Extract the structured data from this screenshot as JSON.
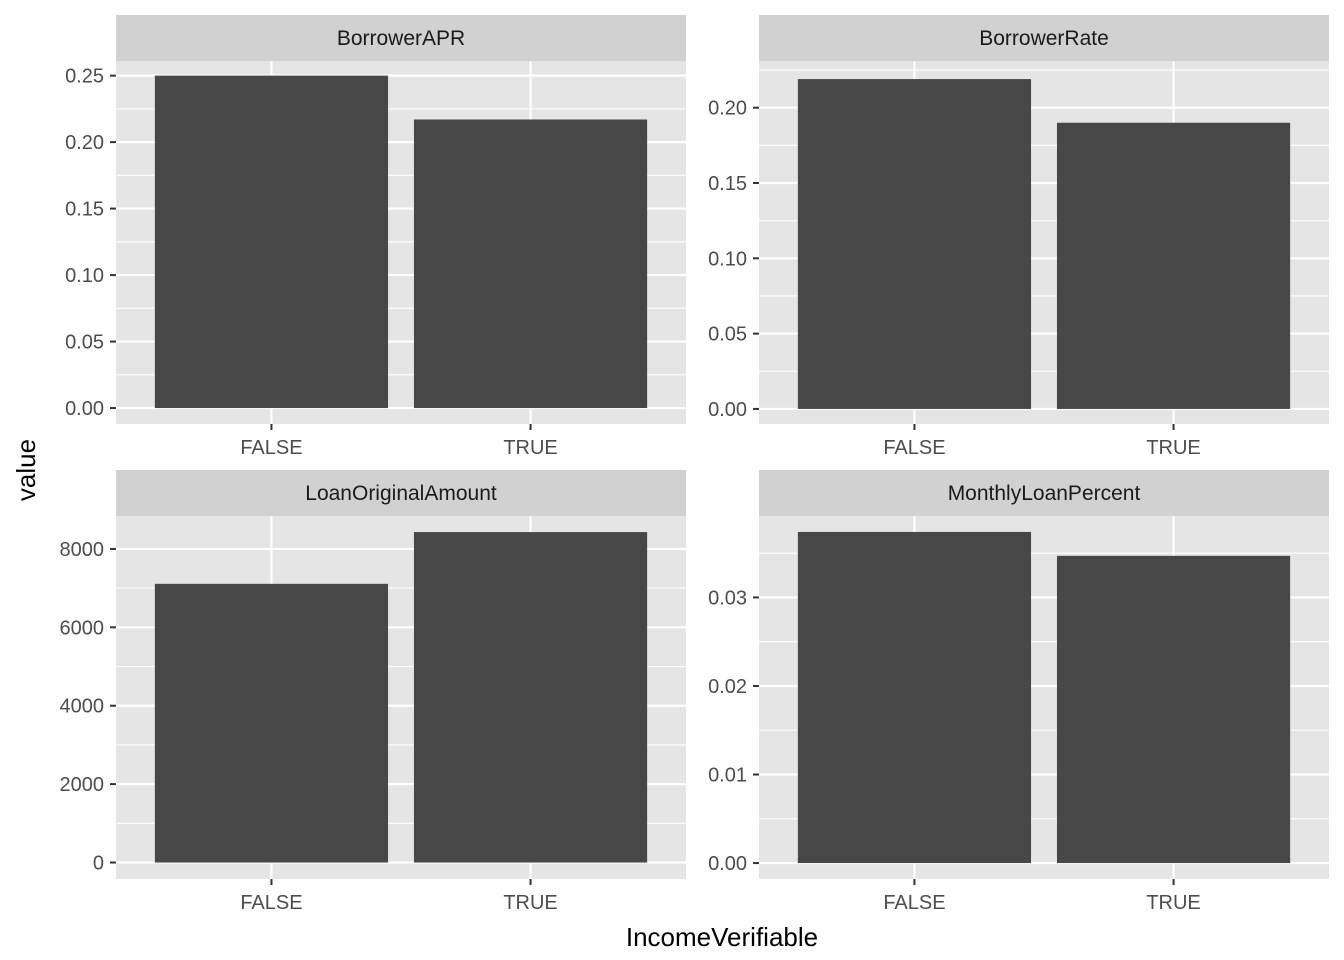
{
  "chart_data": {
    "type": "bar",
    "layout": "facet-2x2",
    "xlabel": "IncomeVerifiable",
    "ylabel": "value",
    "categories": [
      "FALSE",
      "TRUE"
    ],
    "grid": true,
    "colors": {
      "bar": "#474747",
      "panel": "#e5e5e5",
      "strip": "#d1d1d1",
      "grid": "#ffffff"
    },
    "facets": [
      {
        "title": "BorrowerAPR",
        "values": [
          0.25,
          0.217
        ],
        "ylim": [
          -0.012,
          0.261
        ],
        "ticks": [
          0,
          0.05,
          0.1,
          0.15,
          0.2,
          0.25
        ],
        "tick_labels": [
          "0.00",
          "0.05",
          "0.10",
          "0.15",
          "0.20",
          "0.25"
        ]
      },
      {
        "title": "BorrowerRate",
        "values": [
          0.219,
          0.19
        ],
        "ylim": [
          -0.01,
          0.231
        ],
        "ticks": [
          0,
          0.05,
          0.1,
          0.15,
          0.2
        ],
        "tick_labels": [
          "0.00",
          "0.05",
          "0.10",
          "0.15",
          "0.20"
        ]
      },
      {
        "title": "LoanOriginalAmount",
        "values": [
          7110,
          8430
        ],
        "ylim": [
          -420,
          8840
        ],
        "ticks": [
          0,
          2000,
          4000,
          6000,
          8000
        ],
        "tick_labels": [
          "0",
          "2000",
          "4000",
          "6000",
          "8000"
        ]
      },
      {
        "title": "MonthlyLoanPercent",
        "values": [
          0.0374,
          0.0347
        ],
        "ylim": [
          -0.0018,
          0.0392
        ],
        "ticks": [
          0,
          0.01,
          0.02,
          0.03
        ],
        "tick_labels": [
          "0.00",
          "0.01",
          "0.02",
          "0.03"
        ]
      }
    ]
  }
}
